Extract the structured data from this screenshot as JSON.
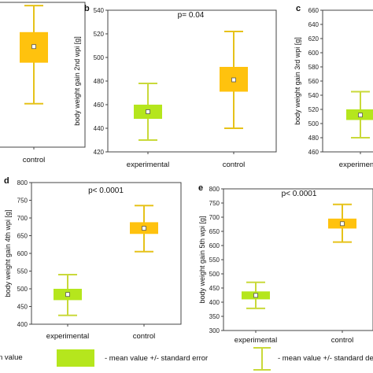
{
  "colors": {
    "experimental": "#b5e61d",
    "control": "#ffc20e",
    "control_whisker": "#e6c21a",
    "experimental_whisker": "#c9d93a",
    "frame": "#444444"
  },
  "chart_data": [
    {
      "panel": "",
      "type": "box",
      "ylabel": "",
      "p_text": "",
      "ylim": [
        380,
        560
      ],
      "yticks": [],
      "categories": [
        "control"
      ],
      "boxes": [
        {
          "category": "control",
          "mean": 505,
          "box_low": 485,
          "box_high": 523,
          "whisker_low": 434,
          "whisker_high": 556
        }
      ]
    },
    {
      "panel": "b",
      "type": "box",
      "ylabel": "body weight gain 2nd wpi [g]",
      "p_text": "p= 0.04",
      "ylim": [
        420,
        540
      ],
      "yticks": [
        420,
        440,
        460,
        480,
        500,
        520,
        540
      ],
      "categories": [
        "experimental",
        "control"
      ],
      "boxes": [
        {
          "category": "experimental",
          "mean": 454,
          "box_low": 448,
          "box_high": 460,
          "whisker_low": 430,
          "whisker_high": 478
        },
        {
          "category": "control",
          "mean": 481,
          "box_low": 471,
          "box_high": 492,
          "whisker_low": 440,
          "whisker_high": 522
        }
      ]
    },
    {
      "panel": "c",
      "type": "box",
      "ylabel": "body weight gain 3rd wpi [g]",
      "p_text": "",
      "ylim": [
        460,
        660
      ],
      "yticks": [
        460,
        480,
        500,
        520,
        540,
        560,
        580,
        600,
        620,
        640,
        660
      ],
      "categories": [
        "experimental"
      ],
      "boxes": [
        {
          "category": "experimental",
          "mean": 512,
          "box_low": 505,
          "box_high": 520,
          "whisker_low": 480,
          "whisker_high": 545
        }
      ]
    },
    {
      "panel": "d",
      "type": "box",
      "ylabel": "body weight gain 4th wpi [g]",
      "p_text": "p< 0.0001",
      "ylim": [
        400,
        800
      ],
      "yticks": [
        400,
        450,
        500,
        550,
        600,
        650,
        700,
        750,
        800
      ],
      "categories": [
        "experimental",
        "control"
      ],
      "boxes": [
        {
          "category": "experimental",
          "mean": 484,
          "box_low": 468,
          "box_high": 500,
          "whisker_low": 425,
          "whisker_high": 540
        },
        {
          "category": "control",
          "mean": 671,
          "box_low": 655,
          "box_high": 688,
          "whisker_low": 605,
          "whisker_high": 735
        }
      ]
    },
    {
      "panel": "e",
      "type": "box",
      "ylabel": "body weight gain 5th wpi [g]",
      "p_text": "p< 0.0001",
      "ylim": [
        300,
        800
      ],
      "yticks": [
        300,
        350,
        400,
        450,
        500,
        550,
        600,
        650,
        700,
        750,
        800
      ],
      "categories": [
        "experimental",
        "control"
      ],
      "boxes": [
        {
          "category": "experimental",
          "mean": 424,
          "box_low": 410,
          "box_high": 438,
          "whisker_low": 378,
          "whisker_high": 470
        },
        {
          "category": "control",
          "mean": 677,
          "box_low": 660,
          "box_high": 695,
          "whisker_low": 612,
          "whisker_high": 745
        }
      ]
    }
  ],
  "legend": {
    "mean_label": "n value",
    "box_label": "- mean value +/- standard error",
    "whisker_label": "- mean value +/- standard deviation"
  }
}
